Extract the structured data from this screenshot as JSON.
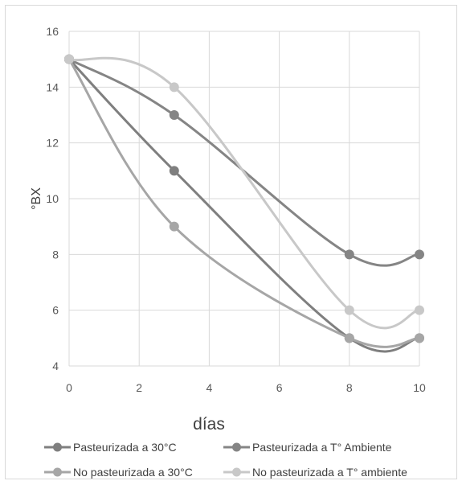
{
  "chart_data": {
    "type": "line",
    "title": "",
    "xlabel": "días",
    "ylabel": "°BX",
    "xlim": [
      0,
      10
    ],
    "ylim": [
      4,
      16
    ],
    "xticks": [
      0,
      2,
      4,
      6,
      8,
      10
    ],
    "yticks": [
      4,
      6,
      8,
      10,
      12,
      14,
      16
    ],
    "x_tick_labels": [
      "0",
      "2",
      "4",
      "6",
      "8",
      "10"
    ],
    "y_tick_labels": [
      "4",
      "6",
      "8",
      "10",
      "12",
      "14",
      "16"
    ],
    "grid": true,
    "legend_position": "bottom",
    "series": [
      {
        "name": "Pasteurizada a 30°C",
        "color": "#7f7f7f",
        "x": [
          0,
          3,
          8,
          10
        ],
        "y": [
          15,
          11,
          5,
          5
        ]
      },
      {
        "name": "Pasteurizada a T° Ambiente",
        "color": "#858585",
        "x": [
          0,
          3,
          8,
          10
        ],
        "y": [
          15,
          13,
          8,
          8
        ]
      },
      {
        "name": "No pasteurizada a 30°C",
        "color": "#a6a6a6",
        "x": [
          0,
          3,
          8,
          10
        ],
        "y": [
          15,
          9,
          5,
          5
        ]
      },
      {
        "name": "No pasteurizada a T° ambiente",
        "color": "#c8c8c8",
        "x": [
          0,
          3,
          8,
          10
        ],
        "y": [
          15,
          14,
          6,
          6
        ]
      }
    ]
  }
}
